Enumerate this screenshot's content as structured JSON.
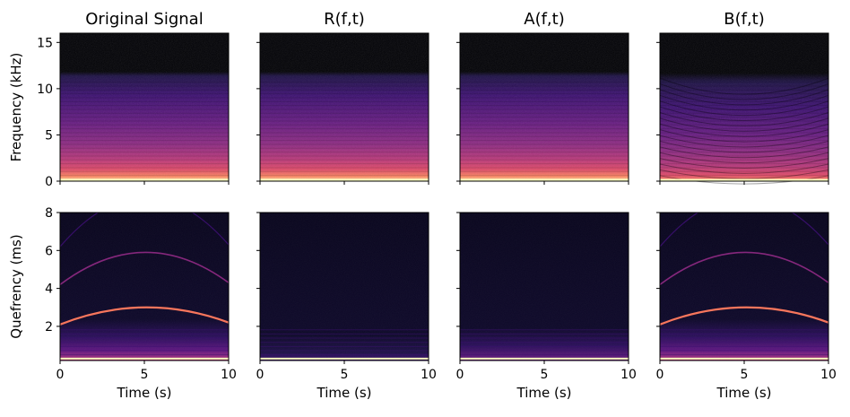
{
  "chart_data": {
    "type": "heatmap",
    "colormap": "magma",
    "columns": [
      {
        "title": "Original Signal"
      },
      {
        "title": "R(f,t)"
      },
      {
        "title": "A(f,t)"
      },
      {
        "title": "B(f,t)"
      }
    ],
    "rows": [
      {
        "ylabel": "Frequency (kHz)",
        "ylim": [
          0,
          16
        ],
        "yticks": [
          "0",
          "5",
          "10",
          "15"
        ],
        "ytick_values": [
          0,
          5,
          10,
          15
        ],
        "content": "spectrogram, energy below ~11.5 kHz, strongest near 0 kHz"
      },
      {
        "ylabel": "Quefrency (ms)",
        "ylim": [
          0.2,
          8
        ],
        "yticks": [
          "2",
          "4",
          "6",
          "8"
        ],
        "ytick_values": [
          2,
          4,
          6,
          8
        ],
        "content": "cepstrogram with arched harmonic lines peaking at t=5 s"
      }
    ],
    "xlabel": "Time (s)",
    "xlim": [
      0,
      10
    ],
    "xticks": [
      "0",
      "5",
      "10"
    ],
    "xtick_values": [
      0,
      5,
      10
    ],
    "cepstral_curves": [
      {
        "start": 2.1,
        "peak": 3.0,
        "end": 2.2
      },
      {
        "start": 4.2,
        "peak": 5.9,
        "end": 4.3
      },
      {
        "start": 6.2,
        "peak": 8.8,
        "end": 6.3
      }
    ],
    "grid": false,
    "legend": "none"
  }
}
